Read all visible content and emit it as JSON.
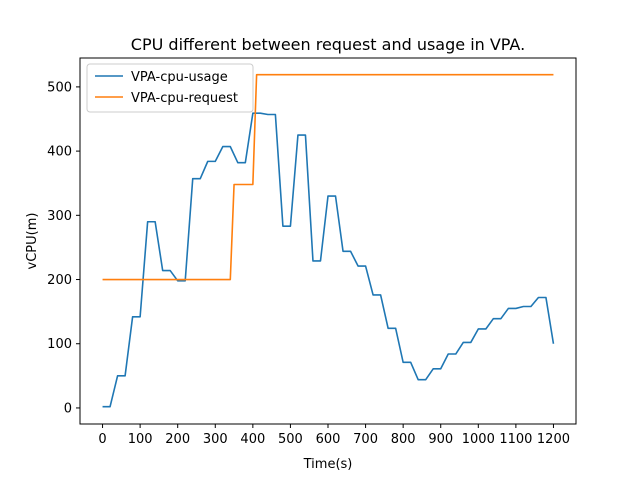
{
  "chart_data": {
    "type": "line",
    "title": "CPU different between request and usage in VPA.",
    "xlabel": "Time(s)",
    "ylabel": "vCPU(m)",
    "xlim": [
      -60,
      1260
    ],
    "ylim": [
      -25,
      545
    ],
    "xticks": [
      0,
      100,
      200,
      300,
      400,
      500,
      600,
      700,
      800,
      900,
      1000,
      1100,
      1200
    ],
    "yticks": [
      0,
      100,
      200,
      300,
      400,
      500
    ],
    "legend_position": "top-left",
    "grid": false,
    "series": [
      {
        "name": "VPA-cpu-usage",
        "color": "#1f77b4",
        "step": true,
        "x": [
          0,
          20,
          40,
          60,
          80,
          100,
          120,
          140,
          160,
          180,
          200,
          220,
          240,
          260,
          280,
          300,
          320,
          340,
          360,
          380,
          400,
          420,
          440,
          460,
          480,
          500,
          520,
          540,
          560,
          580,
          600,
          620,
          640,
          660,
          680,
          700,
          720,
          740,
          760,
          780,
          800,
          820,
          840,
          860,
          880,
          900,
          920,
          940,
          960,
          980,
          1000,
          1020,
          1040,
          1060,
          1080,
          1100,
          1120,
          1140,
          1160,
          1180,
          1200
        ],
        "y": [
          2,
          2,
          50,
          50,
          142,
          142,
          290,
          290,
          214,
          214,
          198,
          198,
          357,
          357,
          384,
          384,
          407,
          407,
          382,
          382,
          459,
          459,
          457,
          457,
          283,
          283,
          425,
          425,
          229,
          229,
          330,
          330,
          244,
          244,
          221,
          221,
          176,
          176,
          124,
          124,
          71,
          71,
          44,
          44,
          61,
          61,
          84,
          84,
          102,
          102,
          123,
          123,
          139,
          139,
          155,
          155,
          158,
          158,
          172,
          172,
          100
        ]
      },
      {
        "name": "VPA-cpu-request",
        "color": "#ff7f0e",
        "step": false,
        "x": [
          0,
          340,
          350,
          400,
          410,
          1200
        ],
        "y": [
          200,
          200,
          348,
          348,
          519,
          519
        ]
      }
    ]
  }
}
